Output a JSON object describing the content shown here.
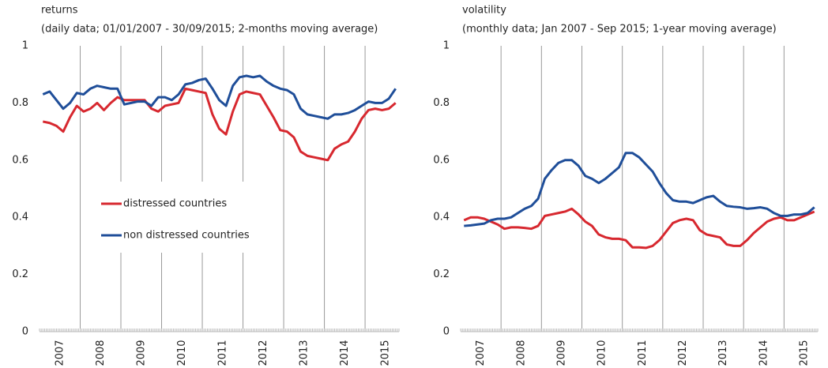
{
  "chart_data": [
    {
      "type": "line",
      "title": "returns",
      "subtitle": "(daily data;  01/01/2007 - 30/09/2015; 2-months moving average)",
      "categories": [
        null,
        null,
        null,
        "2007",
        null,
        null,
        null,
        null,
        null,
        "2008",
        null,
        null,
        null,
        null,
        null,
        "2009",
        null,
        null,
        null,
        null,
        null,
        "2010",
        null,
        null,
        null,
        null,
        null,
        "2011",
        null,
        null,
        null,
        null,
        null,
        "2012",
        null,
        null,
        null,
        null,
        null,
        "2013",
        null,
        null,
        null,
        null,
        null,
        "2014",
        null,
        null,
        null,
        null,
        null,
        "2015",
        null
      ],
      "series": [
        {
          "name": "distressed countries",
          "color": "#d7282f",
          "values": [
            0.735,
            0.73,
            0.72,
            0.7,
            0.75,
            0.79,
            0.77,
            0.78,
            0.8,
            0.775,
            0.8,
            0.82,
            0.81,
            0.81,
            0.81,
            0.81,
            0.78,
            0.77,
            0.79,
            0.795,
            0.8,
            0.85,
            0.845,
            0.84,
            0.835,
            0.76,
            0.71,
            0.69,
            0.77,
            0.83,
            0.84,
            0.835,
            0.83,
            0.79,
            0.75,
            0.705,
            0.7,
            0.68,
            0.63,
            0.615,
            0.61,
            0.605,
            0.6,
            0.64,
            0.655,
            0.665,
            0.7,
            0.745,
            0.775,
            0.78,
            0.775,
            0.78,
            0.8
          ]
        },
        {
          "name": "non distressed countries",
          "color": "#1f4e99",
          "values": [
            0.83,
            0.84,
            0.81,
            0.78,
            0.8,
            0.835,
            0.83,
            0.85,
            0.86,
            0.855,
            0.85,
            0.85,
            0.795,
            0.8,
            0.805,
            0.805,
            0.79,
            0.82,
            0.82,
            0.81,
            0.83,
            0.865,
            0.87,
            0.88,
            0.885,
            0.85,
            0.81,
            0.79,
            0.86,
            0.89,
            0.895,
            0.89,
            0.895,
            0.875,
            0.86,
            0.85,
            0.845,
            0.83,
            0.78,
            0.76,
            0.755,
            0.75,
            0.745,
            0.76,
            0.76,
            0.765,
            0.775,
            0.79,
            0.805,
            0.8,
            0.8,
            0.815,
            0.85
          ]
        }
      ],
      "ylim": [
        0,
        1
      ],
      "yticks": [
        0,
        0.2,
        0.4,
        0.6,
        0.8,
        1
      ],
      "legend": "center-left"
    },
    {
      "type": "line",
      "title": "volatility",
      "subtitle": "(monthly data; Jan 2007 - Sep 2015; 1-year moving average)",
      "categories": [
        null,
        null,
        null,
        "2007",
        null,
        null,
        null,
        null,
        null,
        "2008",
        null,
        null,
        null,
        null,
        null,
        "2009",
        null,
        null,
        null,
        null,
        null,
        "2010",
        null,
        null,
        null,
        null,
        null,
        "2011",
        null,
        null,
        null,
        null,
        null,
        "2012",
        null,
        null,
        null,
        null,
        null,
        "2013",
        null,
        null,
        null,
        null,
        null,
        "2014",
        null,
        null,
        null,
        null,
        null,
        "2015",
        null
      ],
      "series": [
        {
          "name": "distressed countries",
          "color": "#d7282f",
          "values": [
            0.39,
            0.4,
            0.4,
            0.395,
            0.385,
            0.375,
            0.36,
            0.365,
            0.365,
            0.363,
            0.36,
            0.37,
            0.405,
            0.41,
            0.415,
            0.42,
            0.43,
            0.41,
            0.385,
            0.37,
            0.34,
            0.33,
            0.325,
            0.325,
            0.32,
            0.295,
            0.295,
            0.293,
            0.3,
            0.32,
            0.35,
            0.38,
            0.39,
            0.395,
            0.39,
            0.355,
            0.34,
            0.335,
            0.33,
            0.305,
            0.3,
            0.3,
            0.32,
            0.345,
            0.365,
            0.385,
            0.395,
            0.4,
            0.39,
            0.39,
            0.4,
            0.41,
            0.42
          ]
        },
        {
          "name": "non distressed countries",
          "color": "#1f4e99",
          "values": [
            0.37,
            0.372,
            0.375,
            0.378,
            0.39,
            0.395,
            0.395,
            0.4,
            0.415,
            0.43,
            0.44,
            0.465,
            0.535,
            0.565,
            0.59,
            0.6,
            0.6,
            0.58,
            0.545,
            0.535,
            0.52,
            0.535,
            0.555,
            0.575,
            0.625,
            0.625,
            0.61,
            0.585,
            0.56,
            0.52,
            0.485,
            0.46,
            0.455,
            0.455,
            0.45,
            0.46,
            0.47,
            0.475,
            0.455,
            0.44,
            0.437,
            0.435,
            0.43,
            0.432,
            0.435,
            0.43,
            0.415,
            0.405,
            0.405,
            0.41,
            0.41,
            0.415,
            0.435
          ]
        }
      ],
      "ylim": [
        0,
        1
      ],
      "yticks": [
        0,
        0.2,
        0.4,
        0.6,
        0.8,
        1
      ]
    }
  ]
}
